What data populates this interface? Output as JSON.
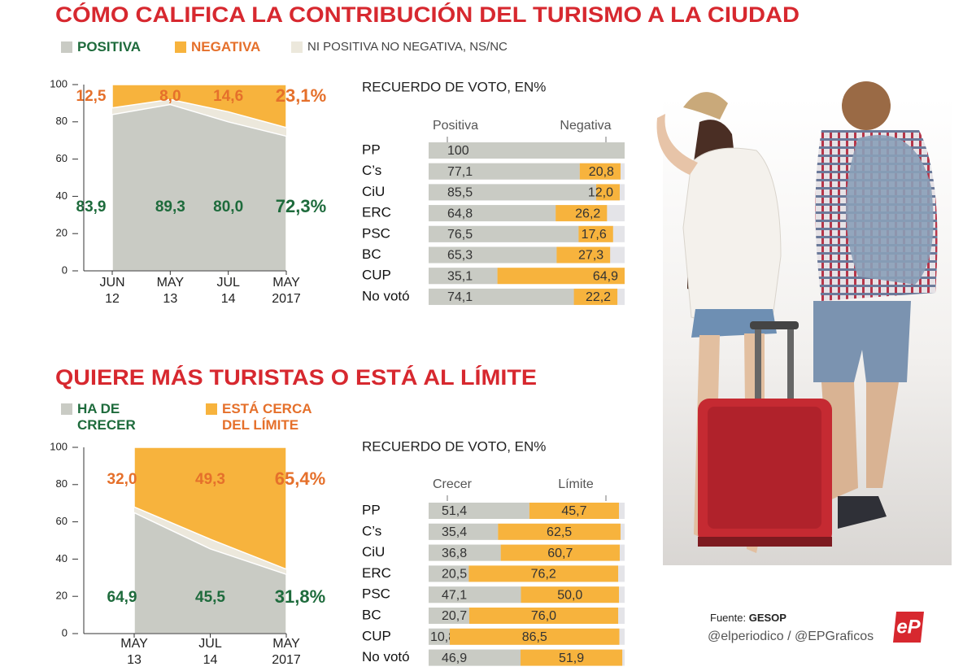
{
  "chart_data": [
    {
      "type": "area",
      "title": "CÓMO CALIFICA LA CONTRIBUCIÓN DEL TURISMO A LA CIUDAD",
      "categories": [
        [
          "JUN",
          "12"
        ],
        [
          "MAY",
          "13"
        ],
        [
          "JUL",
          "14"
        ],
        [
          "MAY",
          "2017"
        ]
      ],
      "series": [
        {
          "name": "POSITIVA",
          "color": "#c9cbc4",
          "text_color": "#1e6b3c",
          "values": [
            83.9,
            89.3,
            80.0,
            72.3
          ],
          "value_labels": [
            "83,9",
            "89,3",
            "80,0",
            "72,3%"
          ]
        },
        {
          "name": "NEGATIVA",
          "color": "#f7b33d",
          "text_color": "#e5702b",
          "from": "top",
          "values": [
            12.5,
            8.0,
            14.6,
            23.1
          ],
          "value_labels": [
            "12,5",
            "8,0",
            "14,6",
            "23,1%"
          ]
        },
        {
          "name": "NI POSITIVA NO NEGATIVA, NS/NC",
          "color": "#ece8dc",
          "text_color": "#444444"
        }
      ],
      "ylim": [
        0,
        100
      ],
      "yticks": [
        0,
        20,
        40,
        60,
        80,
        100
      ]
    },
    {
      "type": "stacked_bar_h",
      "title": "RECUERDO DE VOTO, EN%",
      "categories": [
        "PP",
        "C’s",
        "CiU",
        "ERC",
        "PSC",
        "BC",
        "CUP",
        "No votó"
      ],
      "series": [
        {
          "name": "Positiva",
          "color": "#c9cbc4",
          "values": [
            100,
            77.1,
            85.5,
            64.8,
            76.5,
            65.3,
            35.1,
            74.1
          ],
          "value_labels": [
            "100",
            "77,1",
            "85,5",
            "64,8",
            "76,5",
            "65,3",
            "35,1",
            "74,1"
          ]
        },
        {
          "name": "Negativa",
          "color": "#f7b33d",
          "values": [
            null,
            20.8,
            12.0,
            26.2,
            17.6,
            27.3,
            64.9,
            22.2
          ],
          "value_labels": [
            null,
            "20,8",
            "12,0",
            "26,2",
            "17,6",
            "27,3",
            "64,9",
            "22,2"
          ]
        }
      ],
      "xlim": [
        0,
        100
      ],
      "track_color": "#e4e4e8"
    },
    {
      "type": "area",
      "title": "QUIERE MÁS TURISTAS O ESTÁ AL LÍMITE",
      "categories": [
        [
          "MAY",
          "13"
        ],
        [
          "JUL",
          "14"
        ],
        [
          "MAY",
          "2017"
        ]
      ],
      "series": [
        {
          "name": "HA DE CRECER",
          "color": "#c9cbc4",
          "text_color": "#1e6b3c",
          "values": [
            64.9,
            45.5,
            31.8
          ],
          "value_labels": [
            "64,9",
            "45,5",
            "31,8%"
          ]
        },
        {
          "name": "ESTÁ CERCA DEL LÍMITE",
          "color": "#f7b33d",
          "text_color": "#e5702b",
          "from": "top",
          "values": [
            32.0,
            49.3,
            65.4
          ],
          "value_labels": [
            "32,0",
            "49,3",
            "65,4%"
          ]
        }
      ],
      "ylim": [
        0,
        100
      ],
      "yticks": [
        0,
        20,
        40,
        60,
        80,
        100
      ]
    },
    {
      "type": "stacked_bar_h",
      "title": "RECUERDO DE VOTO, EN%",
      "categories": [
        "PP",
        "C’s",
        "CiU",
        "ERC",
        "PSC",
        "BC",
        "CUP",
        "No votó"
      ],
      "series": [
        {
          "name": "Crecer",
          "color": "#c9cbc4",
          "values": [
            51.4,
            35.4,
            36.8,
            20.5,
            47.1,
            20.7,
            10.8,
            46.9
          ],
          "value_labels": [
            "51,4",
            "35,4",
            "36,8",
            "20,5",
            "47,1",
            "20,7",
            "10,8",
            "46,9"
          ]
        },
        {
          "name": "Límite",
          "color": "#f7b33d",
          "values": [
            45.7,
            62.5,
            60.7,
            76.2,
            50.0,
            76.0,
            86.5,
            51.9
          ],
          "value_labels": [
            "45,7",
            "62,5",
            "60,7",
            "76,2",
            "50,0",
            "76,0",
            "86,5",
            "51,9"
          ]
        }
      ],
      "xlim": [
        0,
        100
      ],
      "track_color": "#e4e4e8"
    }
  ],
  "footer": {
    "source_label": "Fuente:",
    "source": "GESOP",
    "credit": "@elperiodico / @EPGraficos",
    "logo": "eP"
  }
}
